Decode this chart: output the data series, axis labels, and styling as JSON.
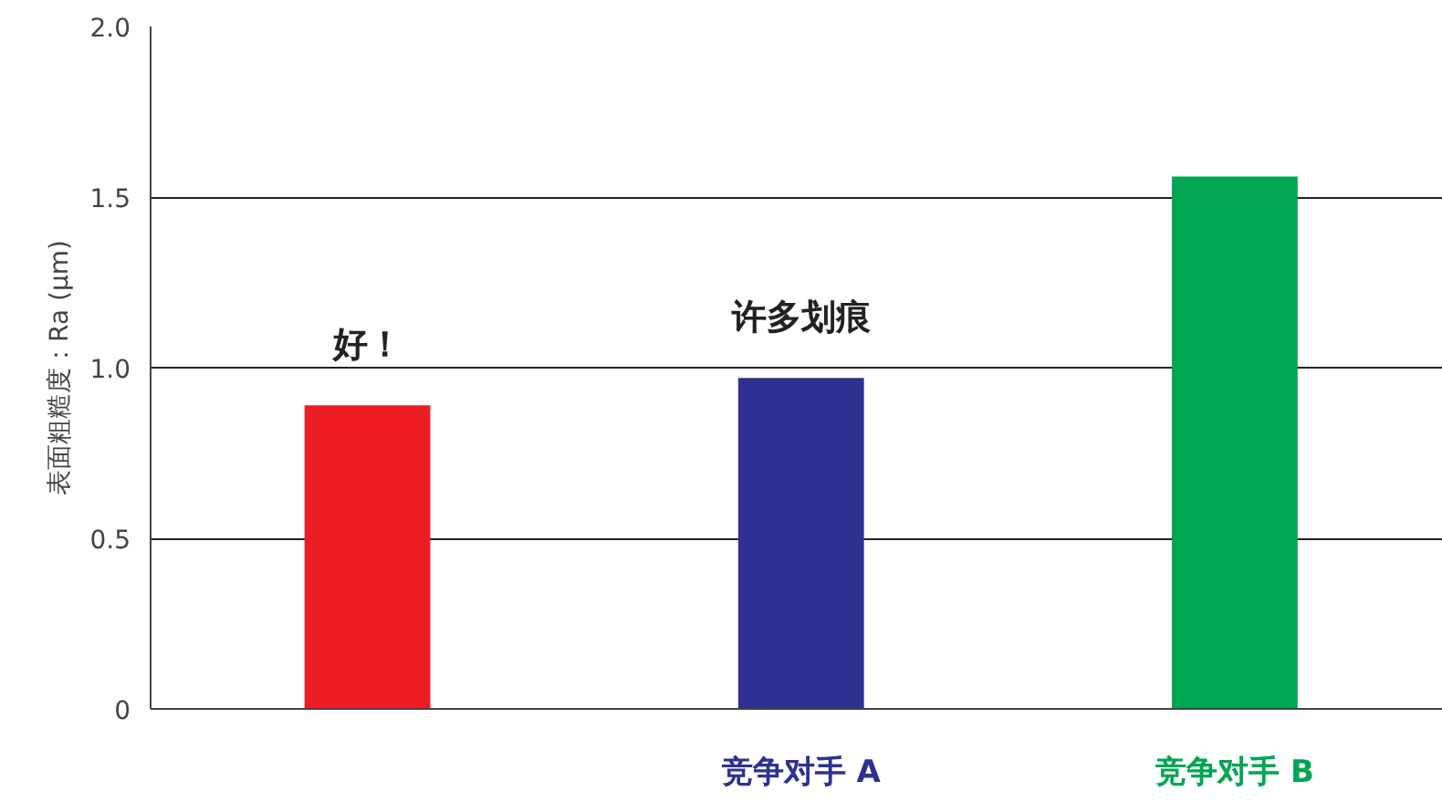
{
  "chart_data": {
    "type": "bar",
    "ylabel": "表面粗糙度：Ra (μm)",
    "categories": [
      null,
      "竞争对手 A",
      "竞争对手 B"
    ],
    "values": [
      0.89,
      0.97,
      1.56
    ],
    "colors": [
      "#ed1c24",
      "#2e3192",
      "#00a651"
    ],
    "ylim": [
      0,
      2.0
    ],
    "yticks": [
      {
        "value": 0,
        "label": "0"
      },
      0.5,
      {
        "value": 1.0,
        "label": "1.0"
      },
      1.5,
      {
        "value": 2.0,
        "label": "2.0"
      }
    ],
    "grid": "y",
    "annotations": [
      "好！",
      "许多划痕"
    ]
  }
}
